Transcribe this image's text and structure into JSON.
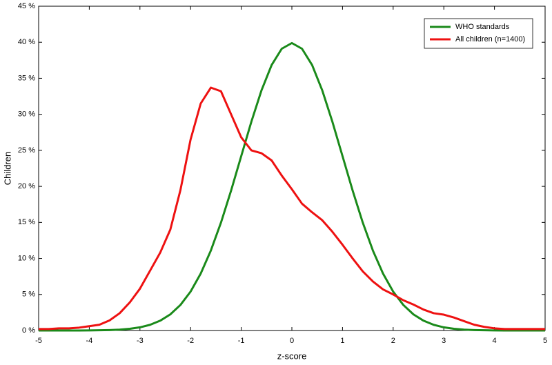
{
  "chart_data": {
    "type": "line",
    "xlabel": "z-score",
    "ylabel": "Children",
    "x": [
      -5,
      -4.8,
      -4.6,
      -4.4,
      -4.2,
      -4,
      -3.8,
      -3.6,
      -3.4,
      -3.2,
      -3,
      -2.8,
      -2.6,
      -2.4,
      -2.2,
      -2,
      -1.8,
      -1.6,
      -1.4,
      -1.2,
      -1,
      -0.8,
      -0.6,
      -0.4,
      -0.2,
      0,
      0.2,
      0.4,
      0.6,
      0.8,
      1,
      1.2,
      1.4,
      1.6,
      1.8,
      2,
      2.2,
      2.4,
      2.6,
      2.8,
      3,
      3.2,
      3.4,
      3.6,
      3.8,
      4,
      4.2,
      4.4,
      4.6,
      4.8,
      5
    ],
    "series": [
      {
        "name": "WHO standards",
        "color": "#1a8a1a",
        "values": [
          0,
          0,
          0,
          0,
          0,
          0.01,
          0.03,
          0.06,
          0.12,
          0.24,
          0.44,
          0.79,
          1.36,
          2.24,
          3.55,
          5.4,
          7.9,
          11.09,
          14.97,
          19.42,
          24.2,
          28.97,
          33.32,
          36.83,
          39.1,
          39.89,
          39.1,
          36.83,
          33.32,
          28.97,
          24.2,
          19.42,
          14.97,
          11.09,
          7.9,
          5.4,
          3.55,
          2.24,
          1.36,
          0.79,
          0.44,
          0.24,
          0.12,
          0.06,
          0.03,
          0.01,
          0,
          0,
          0,
          0,
          0
        ]
      },
      {
        "name": "All children (n=1400)",
        "color": "#ee1111",
        "values": [
          0.2,
          0.2,
          0.3,
          0.3,
          0.4,
          0.6,
          0.8,
          1.4,
          2.4,
          3.9,
          5.8,
          8.3,
          10.8,
          14,
          19.5,
          26.5,
          31.5,
          33.7,
          33.2,
          30,
          26.8,
          25,
          24.6,
          23.6,
          21.5,
          19.6,
          17.6,
          16.4,
          15.3,
          13.7,
          11.9,
          10,
          8.2,
          6.8,
          5.7,
          5,
          4.2,
          3.6,
          2.9,
          2.4,
          2.2,
          1.8,
          1.3,
          0.8,
          0.5,
          0.3,
          0.2,
          0.2,
          0.2,
          0.2,
          0.2
        ]
      }
    ],
    "xlim": [
      -5,
      5
    ],
    "xticks": [
      -5,
      -4,
      -3,
      -2,
      -1,
      0,
      1,
      2,
      3,
      4,
      5
    ],
    "ylim": [
      0,
      45
    ],
    "yticks": [
      {
        "value": 0,
        "label": "0 %"
      },
      {
        "value": 5,
        "label": "5 %"
      },
      {
        "value": 10,
        "label": "10 %"
      },
      {
        "value": 15,
        "label": "15 %"
      },
      {
        "value": 20,
        "label": "20 %"
      },
      {
        "value": 25,
        "label": "25 %"
      },
      {
        "value": 30,
        "label": "30 %"
      },
      {
        "value": 35,
        "label": "35 %"
      },
      {
        "value": 40,
        "label": "40 %"
      },
      {
        "value": 45,
        "label": "45 %"
      }
    ],
    "legend": "top-right"
  }
}
